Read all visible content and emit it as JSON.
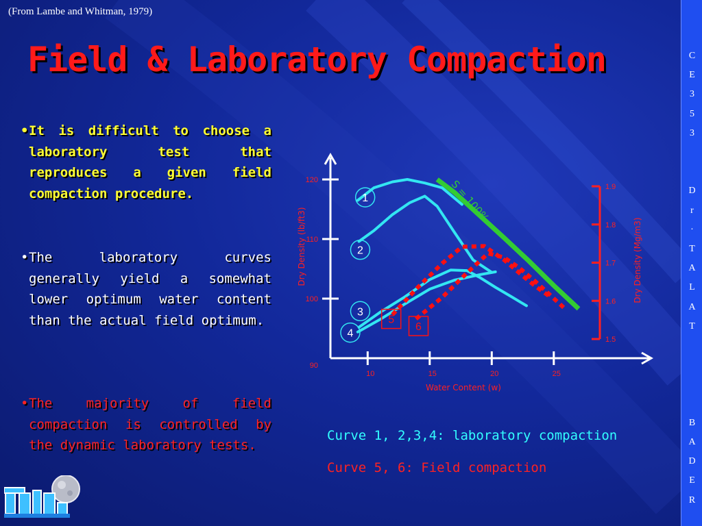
{
  "citation": "(From Lambe and Whitman, 1979)",
  "title": "Field & Laboratory Compaction",
  "bullets": [
    {
      "marker": "•",
      "text": "It is difficult to choose a laboratory test that reproduces a given field compaction procedure."
    },
    {
      "marker": "•",
      "text": "The laboratory curves generally yield a somewhat lower optimum water content than the actual field optimum."
    },
    {
      "marker": "•",
      "text": "The majority of field compaction is controlled by the dynamic laboratory tests."
    }
  ],
  "legend": {
    "lab": "Curve 1, 2,3,4: laboratory compaction",
    "field": "Curve 5, 6: Field compaction"
  },
  "side_strip": [
    "C",
    "E",
    "3",
    "5",
    "3",
    "",
    "",
    "D",
    "r",
    "·",
    "T",
    "A",
    "L",
    "A",
    "T",
    "",
    "",
    "",
    "",
    "B",
    "A",
    "D",
    "E",
    "R"
  ],
  "colors": {
    "title": "#ff1a1a",
    "bullet1": "#ffff33",
    "bullet3": "#ff2222",
    "lab_curve": "#33e6f2",
    "field_curve": "#ff1010",
    "saturation_line": "#33cc33",
    "axis_labels": "#ff2020"
  },
  "chart_data": {
    "type": "line",
    "xlabel": "Water Content (w)",
    "ylabel": "Dry Density (lb/ft3)",
    "ylabel_right": "Dry Density (Mg/m3)",
    "xlim": [
      7,
      31
    ],
    "ylim": [
      90,
      123
    ],
    "x_ticks": [
      10,
      15,
      20,
      25
    ],
    "y_ticks": [
      90,
      100,
      110,
      120
    ],
    "y_ticks_right": [
      1.5,
      1.6,
      1.7,
      1.8,
      1.9
    ],
    "saturation_label": "S = 100%",
    "series": [
      {
        "name": "1",
        "style": "lab",
        "x": [
          9.2,
          10.5,
          12,
          13.2,
          14.6,
          16,
          17.6
        ],
        "y": [
          116.5,
          118.6,
          119.6,
          120.0,
          119.4,
          118.6,
          115.8
        ]
      },
      {
        "name": "2",
        "style": "lab",
        "x": [
          9.3,
          10.5,
          12,
          13.4,
          14.6,
          15.6,
          17,
          18.5,
          20
        ],
        "y": [
          109.6,
          111.4,
          114.1,
          116.1,
          117.2,
          115.5,
          111.1,
          106.5,
          104.4
        ]
      },
      {
        "name": "3",
        "style": "lab",
        "x": [
          9.3,
          11,
          13,
          15,
          16.7,
          18,
          19,
          20.3,
          21.6,
          22.8
        ],
        "y": [
          95.2,
          97.7,
          100.3,
          103.2,
          104.8,
          104.7,
          103.6,
          101.9,
          100.3,
          98.8
        ]
      },
      {
        "name": "4",
        "style": "lab",
        "x": [
          9.2,
          11,
          13,
          15,
          17,
          19,
          20.3
        ],
        "y": [
          94.4,
          96.5,
          99.1,
          101.6,
          103.1,
          104.0,
          104.5
        ]
      },
      {
        "name": "5",
        "style": "field",
        "x": [
          12,
          14,
          16,
          17.6,
          19.4,
          21,
          22.5,
          23.5,
          24.7
        ],
        "y": [
          97.3,
          101.8,
          105.9,
          108.7,
          108.8,
          106.5,
          103.8,
          102.1,
          100.3
        ]
      },
      {
        "name": "6",
        "style": "field",
        "x": [
          13.9,
          16,
          18,
          19.7,
          21,
          22.2,
          23.5,
          24.4,
          26
        ],
        "y": [
          96.6,
          100.2,
          104.3,
          107.6,
          106.9,
          105.2,
          102.9,
          101.2,
          98.1
        ]
      },
      {
        "name": "S = 100%",
        "style": "saturation",
        "x": [
          15.6,
          17,
          19,
          21,
          23,
          25,
          27
        ],
        "y": [
          120.0,
          117.8,
          114.0,
          110.2,
          106.3,
          102.2,
          98.3
        ]
      }
    ],
    "curve_labels": [
      {
        "text": "1",
        "x": 9.8,
        "y": 117.0,
        "style": "lab"
      },
      {
        "text": "2",
        "x": 9.4,
        "y": 108.2,
        "style": "lab"
      },
      {
        "text": "3",
        "x": 9.4,
        "y": 97.9,
        "style": "lab"
      },
      {
        "text": "4",
        "x": 8.6,
        "y": 94.3,
        "style": "lab"
      },
      {
        "text": "5",
        "x": 11.9,
        "y": 96.6,
        "style": "field"
      },
      {
        "text": "6",
        "x": 14.1,
        "y": 95.4,
        "style": "field"
      }
    ],
    "grid": false
  }
}
